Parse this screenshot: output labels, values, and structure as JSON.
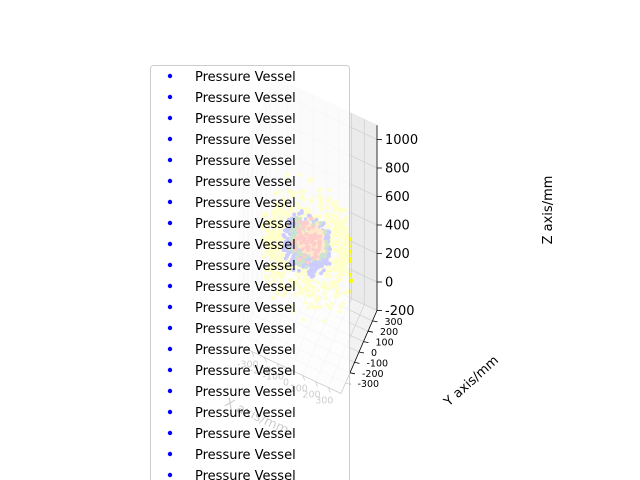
{
  "chart_data": {
    "type": "scatter",
    "title": "",
    "xlabel": "X axis/mm",
    "ylabel": "Y axis/mm",
    "zlabel": "Z axis/mm",
    "xlim": [
      -400,
      400
    ],
    "ylim": [
      -400,
      400
    ],
    "zlim": [
      -200,
      1100
    ],
    "x_ticks": [
      "-300",
      "-200",
      "-100",
      "0",
      "100",
      "200",
      "300"
    ],
    "y_ticks": [
      "-300",
      "-200",
      "-100",
      "0",
      "100",
      "200",
      "300"
    ],
    "z_ticks": [
      "-200",
      "0",
      "200",
      "400",
      "600",
      "800",
      "1000"
    ],
    "grid": true,
    "legend_position": "upper-left",
    "colors": [
      "#ffff00",
      "#0000ff",
      "#008000",
      "#ff8c00",
      "#ff0000"
    ],
    "legend_marker_color": "#0000ff",
    "legend_entries": [
      "Pressure Vessel",
      "Pressure Vessel",
      "Pressure Vessel",
      "Pressure Vessel",
      "Pressure Vessel",
      "Pressure Vessel",
      "Pressure Vessel",
      "Pressure Vessel",
      "Pressure Vessel",
      "Pressure Vessel",
      "Pressure Vessel",
      "Pressure Vessel",
      "Pressure Vessel",
      "Pressure Vessel",
      "Pressure Vessel",
      "Pressure Vessel",
      "Pressure Vessel",
      "Pressure Vessel",
      "Pressure Vessel",
      "Pressure Vessel"
    ]
  }
}
